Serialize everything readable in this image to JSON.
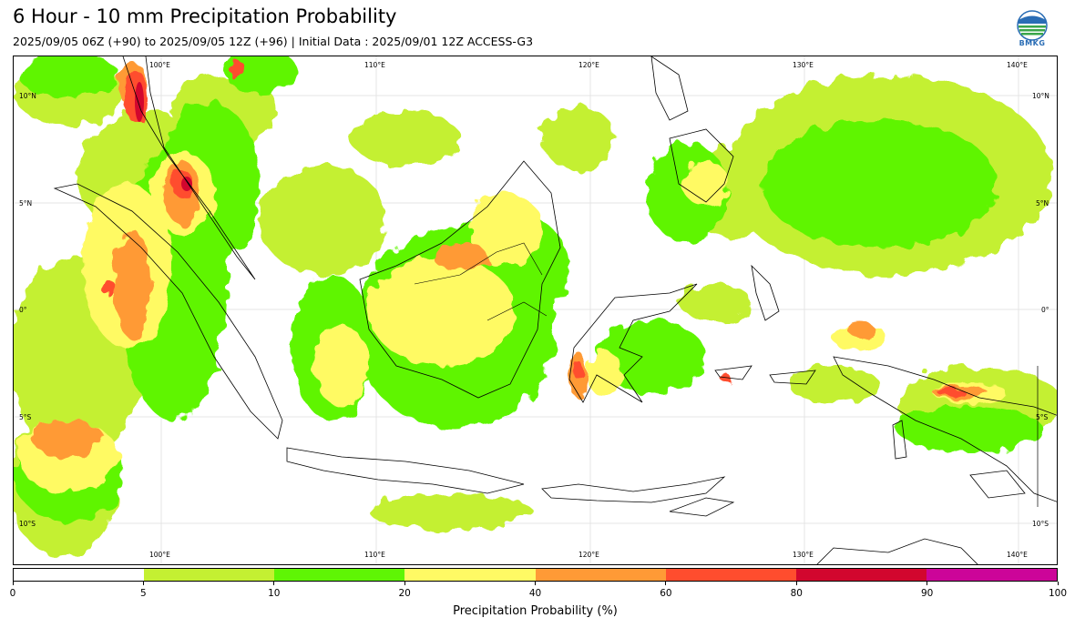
{
  "header": {
    "title": "6 Hour - 10 mm Precipitation Probability",
    "subtitle": "2025/09/05 06Z (+90) to 2025/09/05 12Z (+96) | Initial Data : 2025/09/01 12Z ACCESS-G3"
  },
  "logo": {
    "icon": "bmkg-logo-icon",
    "text": "BMKG"
  },
  "map": {
    "lon_labels_top": [
      "100°E",
      "110°E",
      "120°E",
      "130°E",
      "140°E"
    ],
    "lon_labels_bottom": [
      "100°E",
      "110°E",
      "120°E",
      "130°E",
      "140°E"
    ],
    "lat_labels_left": [
      "10°N",
      "5°N",
      "0°",
      "5°S",
      "10°S"
    ],
    "lat_labels_right": [
      "10°N",
      "5°N",
      "0°",
      "5°S",
      "10°S"
    ],
    "lon_range": [
      93,
      142
    ],
    "lat_range": [
      -12,
      11.5
    ]
  },
  "colorbar": {
    "label": "Precipitation Probability (%)",
    "ticks": [
      "0",
      "5",
      "10",
      "20",
      "40",
      "60",
      "80",
      "90",
      "100"
    ],
    "colors": [
      "#ffffff",
      "#c4f032",
      "#5ff505",
      "#fffa64",
      "#ff9a36",
      "#ff4d2e",
      "#d2062e",
      "#cc0599"
    ]
  }
}
